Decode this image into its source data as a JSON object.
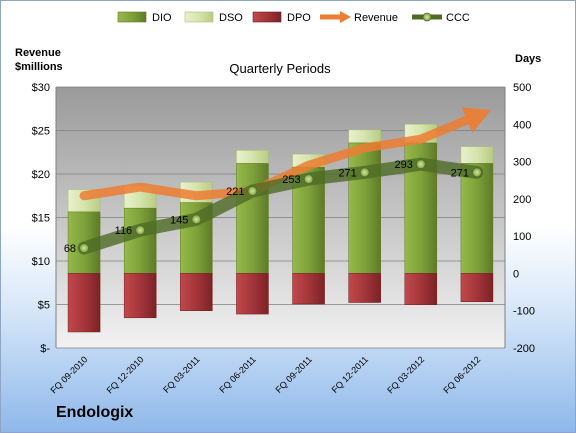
{
  "company": "Endologix",
  "chart_data": {
    "type": "bar",
    "title": "Quarterly Periods",
    "left_axis": {
      "title_line1": "Revenue",
      "title_line2": "$millions",
      "ylim": [
        0,
        30
      ],
      "ticks": [
        "$-",
        "$5",
        "$10",
        "$15",
        "$20",
        "$25",
        "$30"
      ]
    },
    "right_axis": {
      "title": "Days",
      "ylim": [
        -200,
        500
      ],
      "ticks": [
        "-200",
        "-100",
        "0",
        "100",
        "200",
        "300",
        "400",
        "500"
      ]
    },
    "categories": [
      "FQ 09-2010",
      "FQ 12-2010",
      "FQ 03-2011",
      "FQ 06-2011",
      "FQ 09-2011",
      "FQ 12-2011",
      "FQ 03-2012",
      "FQ 06-2012"
    ],
    "legend": [
      "DIO",
      "DSO",
      "DPO",
      "Revenue",
      "CCC"
    ],
    "series": [
      {
        "name": "DIO",
        "axis": "right",
        "values": [
          165,
          175,
          190,
          295,
          285,
          350,
          350,
          295
        ]
      },
      {
        "name": "DSO",
        "axis": "right",
        "values": [
          60,
          60,
          55,
          35,
          35,
          35,
          50,
          45
        ]
      },
      {
        "name": "DPO",
        "axis": "right",
        "values": [
          -157,
          -119,
          -100,
          -109,
          -82,
          -78,
          -84,
          -76
        ]
      },
      {
        "name": "Revenue",
        "axis": "left",
        "values": [
          17.5,
          18.5,
          17.5,
          18,
          21,
          23,
          24,
          27
        ]
      },
      {
        "name": "CCC",
        "axis": "right",
        "values": [
          68,
          116,
          145,
          221,
          253,
          271,
          293,
          271
        ],
        "labels": [
          "68",
          "116",
          "145",
          "221",
          "253",
          "271",
          "293",
          "271"
        ]
      }
    ],
    "colors": {
      "DIO": "#7fa13b",
      "DSO": "#d6e4ad",
      "DPO": "#a3363a",
      "Revenue": "#ed7d31",
      "CCC": "#4e6b26"
    }
  }
}
